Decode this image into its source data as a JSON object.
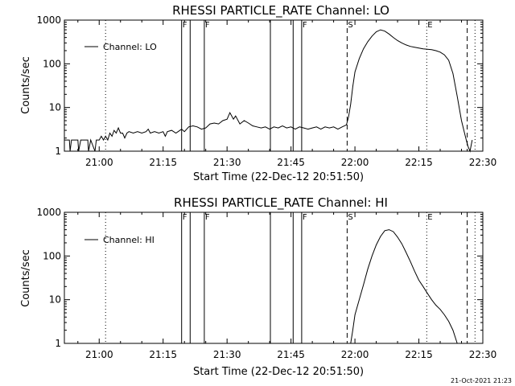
{
  "footer": {
    "timestamp": "21-Oct-2021 21:23"
  },
  "chart_data": [
    {
      "type": "line",
      "title": "RHESSI PARTICLE_RATE Channel: LO",
      "xlabel": "Start Time (22-Dec-12 20:51:50)",
      "ylabel": "Counts/sec",
      "yscale": "log",
      "ylim": [
        1,
        1000
      ],
      "xlim": [
        "20:51:50",
        "22:30:00"
      ],
      "x_ticks": [
        "21:00",
        "21:15",
        "21:30",
        "21:45",
        "22:00",
        "22:15",
        "22:30"
      ],
      "y_ticks": [
        "1",
        "10",
        "100",
        "1000"
      ],
      "grid": false,
      "legend": {
        "position": "top-left",
        "label": "Channel: LO"
      },
      "markers": [
        {
          "time": "21:01:30",
          "style": "dotted",
          "label": ""
        },
        {
          "time": "21:19:20",
          "style": "solid",
          "label": "F"
        },
        {
          "time": "21:21:20",
          "style": "solid",
          "label": ""
        },
        {
          "time": "21:24:40",
          "style": "solid",
          "label": "F"
        },
        {
          "time": "21:40:10",
          "style": "solid",
          "label": ""
        },
        {
          "time": "21:45:30",
          "style": "solid",
          "label": ""
        },
        {
          "time": "21:47:30",
          "style": "solid",
          "label": "F"
        },
        {
          "time": "21:58:10",
          "style": "dashed",
          "label": "S"
        },
        {
          "time": "22:16:50",
          "style": "dotted",
          "label": "E"
        },
        {
          "time": "22:26:20",
          "style": "dashed",
          "label": ""
        },
        {
          "time": "22:28:10",
          "style": "dotted",
          "label": ""
        }
      ],
      "series": [
        {
          "name": "",
          "points": [
            [
              "20:51:50",
              1.8
            ],
            [
              "20:53:00",
              1.8
            ],
            [
              "20:53:10",
              1.0
            ],
            [
              "20:53:30",
              1.8
            ],
            [
              "20:55:00",
              1.8
            ],
            [
              "20:55:10",
              1.0
            ],
            [
              "20:55:40",
              1.8
            ],
            [
              "20:57:20",
              1.8
            ],
            [
              "20:57:30",
              1.0
            ],
            [
              "20:58:00",
              1.8
            ],
            [
              "20:59:00",
              1.0
            ],
            [
              "20:59:20",
              1.8
            ],
            [
              "21:00:00",
              1.8
            ],
            [
              "21:00:30",
              2.2
            ],
            [
              "21:01:00",
              1.8
            ],
            [
              "21:01:30",
              2.2
            ],
            [
              "21:02:00",
              1.8
            ],
            [
              "21:02:30",
              2.6
            ],
            [
              "21:03:00",
              2.2
            ],
            [
              "21:03:30",
              3.0
            ],
            [
              "21:04:00",
              2.6
            ],
            [
              "21:04:30",
              3.4
            ],
            [
              "21:05:00",
              2.6
            ],
            [
              "21:05:30",
              2.6
            ],
            [
              "21:06:00",
              2.0
            ],
            [
              "21:06:30",
              2.6
            ],
            [
              "21:07:00",
              2.8
            ],
            [
              "21:08:00",
              2.6
            ],
            [
              "21:09:00",
              2.8
            ],
            [
              "21:10:00",
              2.6
            ],
            [
              "21:11:00",
              2.8
            ],
            [
              "21:11:30",
              3.2
            ],
            [
              "21:12:00",
              2.6
            ],
            [
              "21:13:00",
              2.8
            ],
            [
              "21:14:00",
              2.6
            ],
            [
              "21:15:00",
              2.8
            ],
            [
              "21:15:30",
              2.2
            ],
            [
              "21:16:00",
              2.8
            ],
            [
              "21:17:00",
              3.0
            ],
            [
              "21:18:00",
              2.6
            ],
            [
              "21:18:30",
              2.8
            ],
            [
              "21:19:20",
              3.2
            ],
            [
              "21:20:00",
              2.8
            ],
            [
              "21:21:00",
              3.6
            ],
            [
              "21:22:00",
              3.8
            ],
            [
              "21:23:00",
              3.6
            ],
            [
              "21:24:00",
              3.2
            ],
            [
              "21:25:00",
              3.4
            ],
            [
              "21:26:00",
              4.2
            ],
            [
              "21:27:00",
              4.4
            ],
            [
              "21:28:00",
              4.2
            ],
            [
              "21:29:00",
              5.0
            ],
            [
              "21:30:00",
              5.4
            ],
            [
              "21:30:40",
              7.6
            ],
            [
              "21:31:30",
              5.4
            ],
            [
              "21:32:00",
              6.4
            ],
            [
              "21:33:00",
              4.2
            ],
            [
              "21:34:00",
              5.0
            ],
            [
              "21:35:00",
              4.4
            ],
            [
              "21:36:00",
              3.8
            ],
            [
              "21:37:00",
              3.6
            ],
            [
              "21:38:00",
              3.4
            ],
            [
              "21:39:00",
              3.6
            ],
            [
              "21:40:00",
              3.2
            ],
            [
              "21:41:00",
              3.6
            ],
            [
              "21:42:00",
              3.4
            ],
            [
              "21:43:00",
              3.8
            ],
            [
              "21:44:00",
              3.4
            ],
            [
              "21:45:00",
              3.6
            ],
            [
              "21:46:00",
              3.2
            ],
            [
              "21:47:00",
              3.6
            ],
            [
              "21:48:00",
              3.4
            ],
            [
              "21:49:00",
              3.2
            ],
            [
              "21:50:00",
              3.4
            ],
            [
              "21:51:00",
              3.6
            ],
            [
              "21:52:00",
              3.2
            ],
            [
              "21:53:00",
              3.6
            ],
            [
              "21:54:00",
              3.4
            ],
            [
              "21:55:00",
              3.6
            ],
            [
              "21:56:00",
              3.2
            ],
            [
              "21:57:00",
              3.6
            ],
            [
              "21:58:00",
              4.0
            ],
            [
              "21:58:30",
              6.0
            ],
            [
              "21:59:00",
              12
            ],
            [
              "21:59:30",
              30
            ],
            [
              "22:00:00",
              65
            ],
            [
              "22:01:00",
              130
            ],
            [
              "22:02:00",
              220
            ],
            [
              "22:03:00",
              320
            ],
            [
              "22:04:00",
              430
            ],
            [
              "22:05:00",
              540
            ],
            [
              "22:06:00",
              600
            ],
            [
              "22:07:00",
              560
            ],
            [
              "22:08:00",
              480
            ],
            [
              "22:09:00",
              400
            ],
            [
              "22:10:00",
              340
            ],
            [
              "22:11:00",
              300
            ],
            [
              "22:12:00",
              270
            ],
            [
              "22:13:00",
              250
            ],
            [
              "22:14:00",
              240
            ],
            [
              "22:15:00",
              230
            ],
            [
              "22:16:00",
              220
            ],
            [
              "22:17:00",
              215
            ],
            [
              "22:18:00",
              210
            ],
            [
              "22:19:00",
              200
            ],
            [
              "22:20:00",
              185
            ],
            [
              "22:21:00",
              160
            ],
            [
              "22:22:00",
              120
            ],
            [
              "22:23:00",
              60
            ],
            [
              "22:24:00",
              18
            ],
            [
              "22:25:00",
              5
            ],
            [
              "22:26:00",
              2
            ],
            [
              "22:26:30",
              1.3
            ],
            [
              "22:27:00",
              1.0
            ],
            [
              "22:27:30",
              1.8
            ]
          ]
        }
      ]
    },
    {
      "type": "line",
      "title": "RHESSI PARTICLE_RATE Channel: HI",
      "xlabel": "Start Time (22-Dec-12 20:51:50)",
      "ylabel": "Counts/sec",
      "yscale": "log",
      "ylim": [
        1,
        1000
      ],
      "xlim": [
        "20:51:50",
        "22:30:00"
      ],
      "x_ticks": [
        "21:00",
        "21:15",
        "21:30",
        "21:45",
        "22:00",
        "22:15",
        "22:30"
      ],
      "y_ticks": [
        "1",
        "10",
        "100",
        "1000"
      ],
      "grid": false,
      "legend": {
        "position": "top-left",
        "label": "Channel: HI"
      },
      "markers": [
        {
          "time": "21:01:30",
          "style": "dotted",
          "label": ""
        },
        {
          "time": "21:19:20",
          "style": "solid",
          "label": "F"
        },
        {
          "time": "21:21:20",
          "style": "solid",
          "label": ""
        },
        {
          "time": "21:24:40",
          "style": "solid",
          "label": "F"
        },
        {
          "time": "21:40:10",
          "style": "solid",
          "label": ""
        },
        {
          "time": "21:45:30",
          "style": "solid",
          "label": ""
        },
        {
          "time": "21:47:30",
          "style": "solid",
          "label": "F"
        },
        {
          "time": "21:58:10",
          "style": "dashed",
          "label": "S"
        },
        {
          "time": "22:16:50",
          "style": "dotted",
          "label": "E"
        },
        {
          "time": "22:26:20",
          "style": "dashed",
          "label": ""
        },
        {
          "time": "22:28:10",
          "style": "dotted",
          "label": ""
        }
      ],
      "series": [
        {
          "name": "",
          "points": [
            [
              "21:59:00",
              1.0
            ],
            [
              "21:59:30",
              2.0
            ],
            [
              "22:00:00",
              4.5
            ],
            [
              "22:01:00",
              10
            ],
            [
              "22:02:00",
              22
            ],
            [
              "22:03:00",
              50
            ],
            [
              "22:04:00",
              100
            ],
            [
              "22:05:00",
              180
            ],
            [
              "22:06:00",
              280
            ],
            [
              "22:07:00",
              380
            ],
            [
              "22:08:00",
              400
            ],
            [
              "22:09:00",
              360
            ],
            [
              "22:10:00",
              270
            ],
            [
              "22:11:00",
              190
            ],
            [
              "22:12:00",
              120
            ],
            [
              "22:13:00",
              75
            ],
            [
              "22:14:00",
              45
            ],
            [
              "22:15:00",
              28
            ],
            [
              "22:16:00",
              20
            ],
            [
              "22:17:00",
              14
            ],
            [
              "22:18:00",
              10
            ],
            [
              "22:19:00",
              7.5
            ],
            [
              "22:20:00",
              6
            ],
            [
              "22:21:00",
              4.5
            ],
            [
              "22:22:00",
              3.2
            ],
            [
              "22:23:00",
              2.0
            ],
            [
              "22:24:00",
              1.0
            ]
          ]
        }
      ]
    }
  ]
}
